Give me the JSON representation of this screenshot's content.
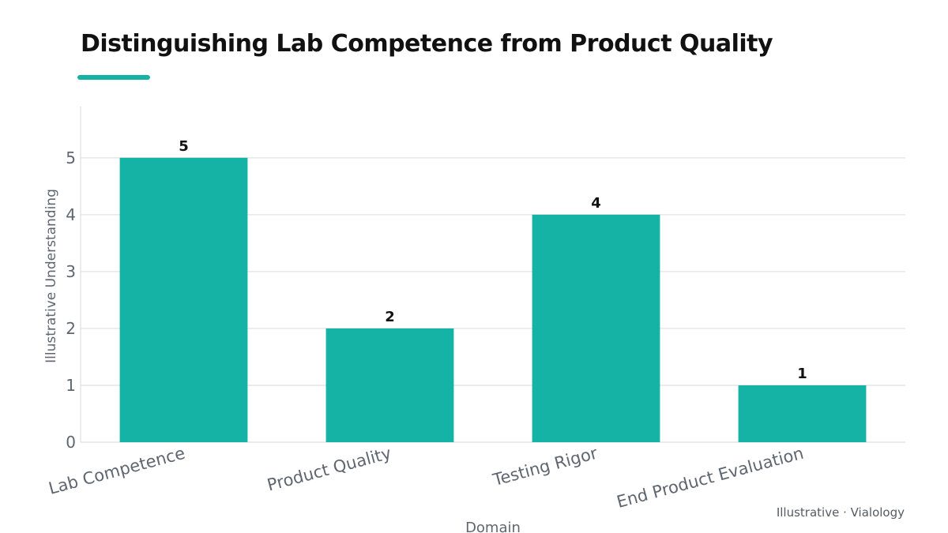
{
  "title": "Distinguishing Lab Competence from Product Quality",
  "credit": "Illustrative · Vialology",
  "colors": {
    "accent": "#14b3a6",
    "axis_text": "#5f6670",
    "grid": "#e6e6e6",
    "title": "#111111"
  },
  "chart_data": {
    "type": "bar",
    "categories": [
      "Lab Competence",
      "Product Quality",
      "Testing Rigor",
      "End Product Evaluation"
    ],
    "values": [
      5,
      2,
      4,
      1
    ],
    "xlabel": "Domain",
    "ylabel": "Illustrative Understanding",
    "ylim": [
      0,
      5.9
    ],
    "yticks": [
      0,
      1,
      2,
      3,
      4,
      5
    ],
    "grid": true,
    "legend": "none",
    "data_labels": true
  }
}
